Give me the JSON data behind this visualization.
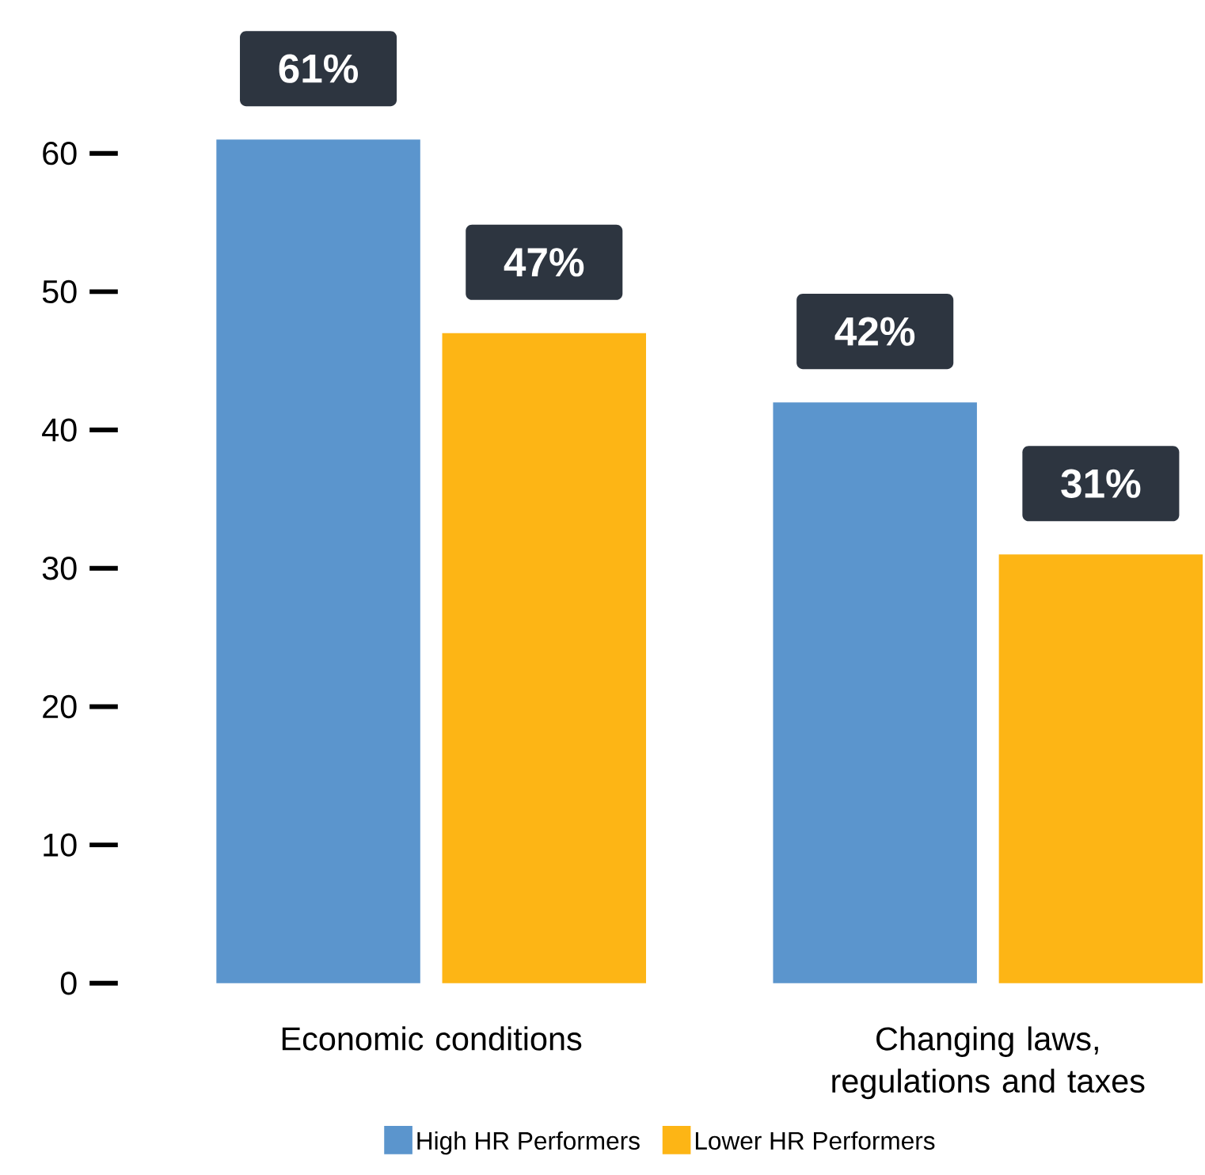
{
  "chart_data": {
    "type": "bar",
    "categories": [
      "Economic conditions",
      "Changing laws, regulations and taxes"
    ],
    "series": [
      {
        "name": "High HR Performers",
        "color": "#5b95cd",
        "values": [
          61,
          42
        ],
        "value_labels": [
          "61%",
          "42%"
        ]
      },
      {
        "name": "Lower HR Performers",
        "color": "#fdb515",
        "values": [
          47,
          31
        ],
        "value_labels": [
          "47%",
          "31%"
        ]
      }
    ],
    "ylim": [
      0,
      61
    ],
    "yticks": [
      0,
      10,
      20,
      30,
      40,
      50,
      60
    ],
    "legend": "bottom"
  }
}
